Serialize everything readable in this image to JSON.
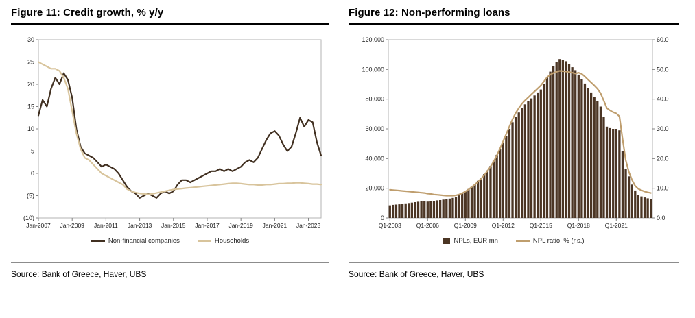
{
  "figures": [
    {
      "title": "Figure 11: Credit growth, % y/y",
      "source": "Source: Bank of Greece, Haver, UBS",
      "legend": [
        {
          "label": "Non-financial companies",
          "color": "#413021",
          "type": "line"
        },
        {
          "label": "Households",
          "color": "#d8c49c",
          "type": "line"
        }
      ]
    },
    {
      "title": "Figure 12: Non-performing loans",
      "source": "Source: Bank of Greece, Haver, UBS",
      "legend": [
        {
          "label": "NPLs, EUR mn",
          "color": "#4b3524",
          "type": "bar"
        },
        {
          "label": "NPL ratio, % (r.s.)",
          "color": "#bf9e6e",
          "type": "line"
        }
      ]
    }
  ],
  "chart_data": [
    {
      "type": "line",
      "title": "Figure 11: Credit growth, % y/y",
      "x_frequency": "quarterly",
      "x_tick_interval": 8,
      "x_tick_labels": [
        "Jan-2007",
        "Jan-2009",
        "Jan-2011",
        "Jan-2013",
        "Jan-2015",
        "Jan-2017",
        "Jan-2019",
        "Jan-2021",
        "Jan-2023"
      ],
      "ylim": [
        -10,
        30
      ],
      "ytick_step": 5,
      "ytick_labels": [
        "30",
        "25",
        "20",
        "15",
        "10",
        "5",
        "0",
        "(5)",
        "(10)"
      ],
      "grid": false,
      "legend_position": "bottom",
      "series": [
        {
          "name": "Non-financial companies",
          "color": "#413021",
          "values": [
            13,
            16.5,
            15,
            19,
            21.5,
            20,
            22.5,
            21,
            17,
            10,
            6,
            4.5,
            4,
            3.5,
            2.5,
            1.5,
            2,
            1.5,
            1,
            0,
            -1.5,
            -3,
            -4,
            -4.5,
            -5.5,
            -5,
            -4.5,
            -5,
            -5.5,
            -4.5,
            -4,
            -4.5,
            -4,
            -2.5,
            -1.5,
            -1.5,
            -2,
            -1.5,
            -1,
            -0.5,
            0,
            0.5,
            0.5,
            1,
            0.5,
            1,
            0.5,
            1,
            1.5,
            2.5,
            3,
            2.5,
            3.5,
            5.5,
            7.5,
            9,
            9.5,
            8.5,
            6.5,
            5,
            6,
            9,
            12.5,
            10.5,
            12,
            11.5,
            7,
            4
          ]
        },
        {
          "name": "Households",
          "color": "#d8c49c",
          "values": [
            25,
            24.5,
            24,
            23.5,
            23.5,
            23,
            21.5,
            19,
            14,
            9,
            5.5,
            3.5,
            3,
            2,
            1,
            0,
            -0.5,
            -1,
            -1.5,
            -2,
            -2.5,
            -3.5,
            -4,
            -4.3,
            -4.5,
            -4.6,
            -4.7,
            -4.6,
            -4.4,
            -4.2,
            -4,
            -3.8,
            -3.6,
            -3.5,
            -3.4,
            -3.3,
            -3.2,
            -3.1,
            -3,
            -2.9,
            -2.8,
            -2.7,
            -2.6,
            -2.5,
            -2.4,
            -2.3,
            -2.2,
            -2.2,
            -2.3,
            -2.4,
            -2.5,
            -2.5,
            -2.6,
            -2.6,
            -2.5,
            -2.5,
            -2.4,
            -2.3,
            -2.3,
            -2.2,
            -2.2,
            -2.1,
            -2.1,
            -2.2,
            -2.3,
            -2.4,
            -2.4,
            -2.5
          ]
        }
      ]
    },
    {
      "type": "bar+line",
      "title": "Figure 12: Non-performing loans",
      "x_frequency": "quarterly",
      "x_tick_interval": 12,
      "x_tick_labels": [
        "Q1-2003",
        "Q1-2006",
        "Q1-2009",
        "Q1-2012",
        "Q1-2015",
        "Q1-2018",
        "Q1-2021"
      ],
      "left_ylim": [
        0,
        120000
      ],
      "left_ytick_step": 20000,
      "right_ylim": [
        0,
        60
      ],
      "right_ytick_step": 10,
      "grid": false,
      "legend_position": "bottom",
      "bars": {
        "name": "NPLs, EUR mn",
        "color": "#4b3524",
        "axis": "left",
        "values": [
          8500,
          8800,
          9000,
          9200,
          9500,
          9800,
          10000,
          10300,
          10600,
          10900,
          11100,
          11300,
          11000,
          11200,
          11500,
          11800,
          12000,
          12300,
          12600,
          13000,
          13500,
          14200,
          15200,
          16500,
          18000,
          19500,
          21000,
          23000,
          25000,
          27000,
          29500,
          32000,
          35000,
          38500,
          42500,
          46500,
          50500,
          55000,
          60000,
          64500,
          68000,
          71000,
          74000,
          76500,
          78500,
          80500,
          82500,
          84500,
          86500,
          90000,
          94500,
          98500,
          102000,
          105000,
          107000,
          106500,
          105500,
          103500,
          101500,
          99500,
          96500,
          93500,
          90500,
          87500,
          84500,
          81500,
          78500,
          75000,
          68000,
          61500,
          60500,
          60000,
          60000,
          59000,
          45000,
          33000,
          28000,
          22500,
          18500,
          15500,
          14500,
          13800,
          13200,
          12800
        ]
      },
      "line": {
        "name": "NPL ratio, % (r.s.)",
        "color": "#bf9e6e",
        "axis": "right",
        "values": [
          9.5,
          9.4,
          9.3,
          9.2,
          9.1,
          9.0,
          8.9,
          8.8,
          8.7,
          8.6,
          8.5,
          8.4,
          8.2,
          8.1,
          7.9,
          7.8,
          7.7,
          7.6,
          7.5,
          7.5,
          7.5,
          7.6,
          7.9,
          8.3,
          8.9,
          9.6,
          10.4,
          11.2,
          12.2,
          13.2,
          14.4,
          15.8,
          17.3,
          19.0,
          21.0,
          23.3,
          25.8,
          28.3,
          30.8,
          33.2,
          35.3,
          37.0,
          38.5,
          39.6,
          40.6,
          41.6,
          42.6,
          43.6,
          44.6,
          46.0,
          47.4,
          48.2,
          48.8,
          49.2,
          49.5,
          49.4,
          49.3,
          49.1,
          48.9,
          48.6,
          48.9,
          48.5,
          47.6,
          46.6,
          45.6,
          44.6,
          43.5,
          42.0,
          39.5,
          37.0,
          36.2,
          35.6,
          35.2,
          34.2,
          26.5,
          19.5,
          15.5,
          12.8,
          10.8,
          9.8,
          9.3,
          8.9,
          8.6,
          8.4
        ]
      }
    }
  ]
}
